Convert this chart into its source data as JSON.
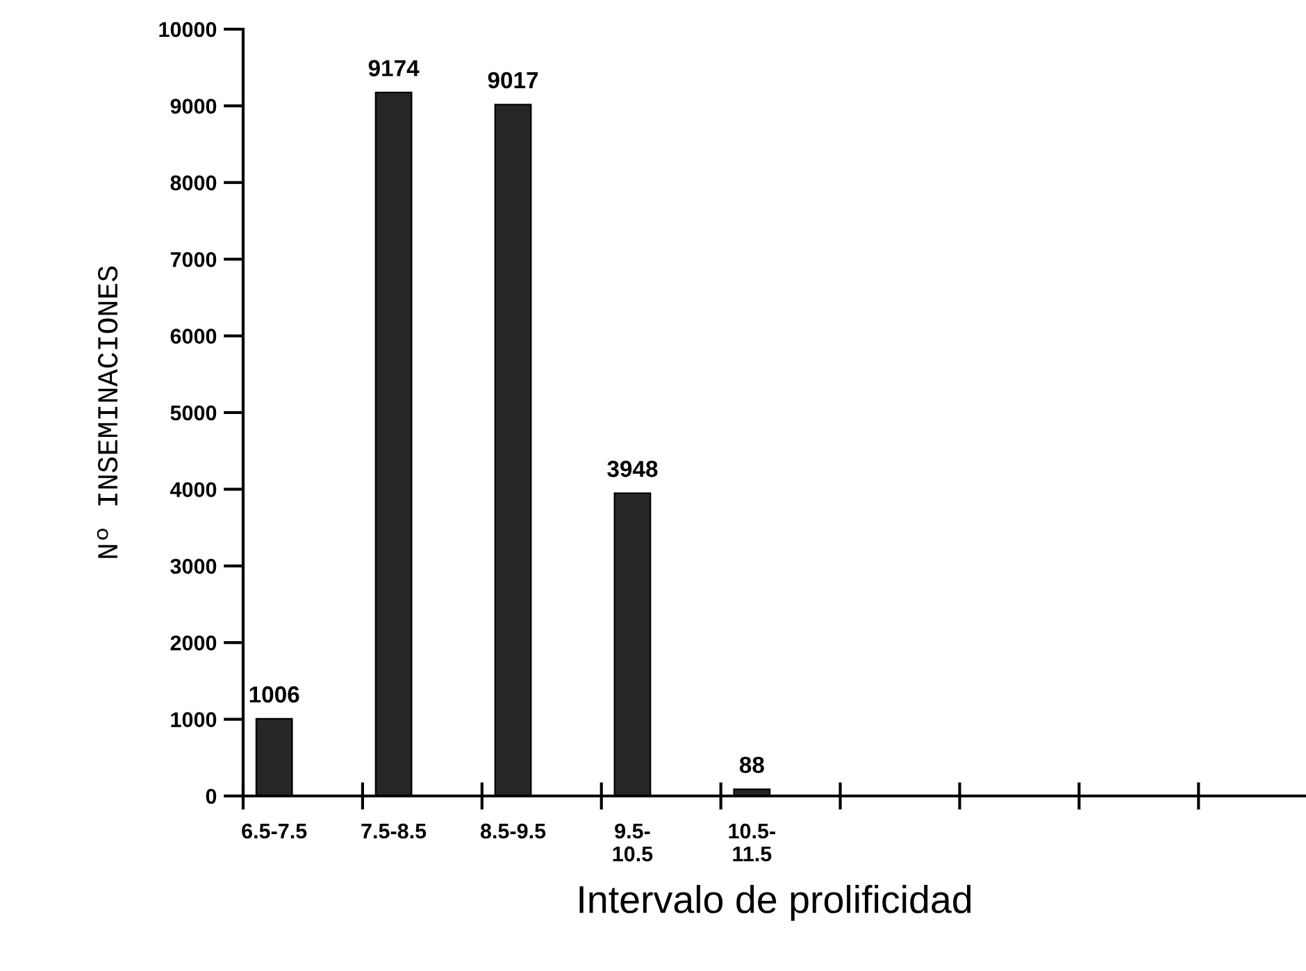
{
  "chart_data": {
    "type": "bar",
    "xlabel": "Intervalo de prolificidad",
    "ylabel": "Nº INSEMINACIONES",
    "categories": [
      "6.5-7.5",
      "7.5-8.5",
      "8.5-9.5",
      "9.5-\n10.5",
      "10.5-\n11.5",
      null,
      null,
      null,
      null
    ],
    "values": [
      1006,
      9174,
      9017,
      3948,
      88,
      null,
      null,
      null,
      null
    ],
    "color": "#262626",
    "ylim": [
      0,
      10000
    ],
    "yticks": [
      0,
      1000,
      2000,
      3000,
      4000,
      5000,
      6000,
      7000,
      8000,
      9000,
      10000
    ],
    "data_labels": true,
    "grid": false,
    "legend": false
  }
}
